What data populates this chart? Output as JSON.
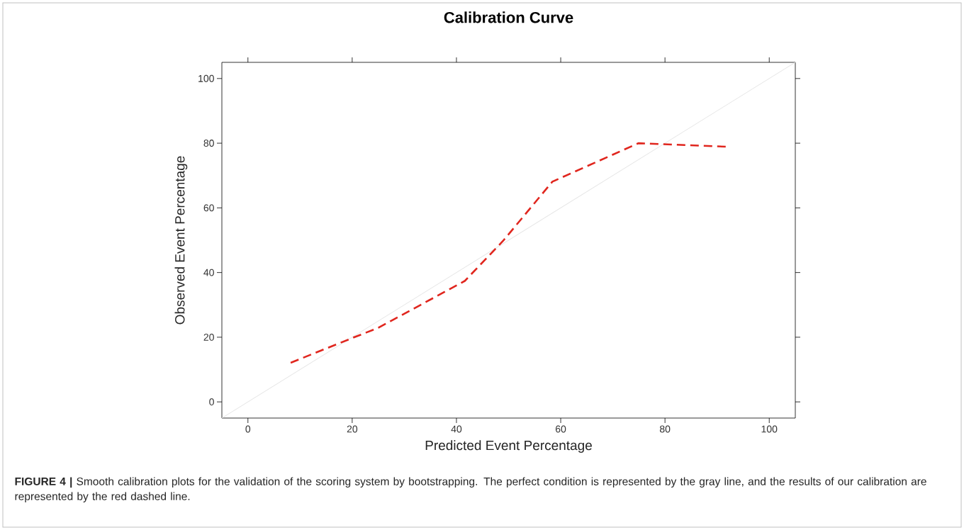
{
  "chart_data": {
    "type": "line",
    "title": "Calibration Curve",
    "xlabel": "Predicted Event Percentage",
    "ylabel": "Observed Event Percentage",
    "xlim": [
      -5,
      105
    ],
    "ylim": [
      -5,
      105
    ],
    "xticks": [
      0,
      20,
      40,
      60,
      80,
      100
    ],
    "yticks": [
      0,
      20,
      40,
      60,
      80,
      100
    ],
    "marker": "none",
    "series": [
      {
        "color": "#e6e6e6",
        "line_style": "solid",
        "x": [
          -5,
          105
        ],
        "values": [
          -5,
          105
        ]
      },
      {
        "color": "#e0261e",
        "line_style": "dashed",
        "x": [
          8.2,
          20.1,
          25,
          41.6,
          49,
          58.4,
          74.9,
          92
        ],
        "values": [
          12.1,
          19.8,
          22.9,
          37.4,
          49.9,
          68.1,
          80,
          78.9
        ]
      }
    ],
    "annotations": [
      "**FIGURE 4 |** Smooth calibration plots for the validation of the scoring system by bootstrapping. The perfect condition is represented by the gray line, and the results of our calibration are represented by the red dashed line."
    ]
  }
}
